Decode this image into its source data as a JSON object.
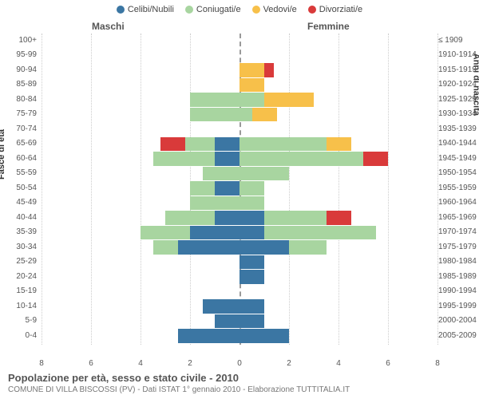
{
  "chart": {
    "type": "population-pyramid",
    "legend": [
      {
        "label": "Celibi/Nubili",
        "color": "#3b76a3"
      },
      {
        "label": "Coniugati/e",
        "color": "#a8d5a0"
      },
      {
        "label": "Vedovi/e",
        "color": "#f7c04a"
      },
      {
        "label": "Divorziati/e",
        "color": "#d93a3a"
      }
    ],
    "gender_left": "Maschi",
    "gender_right": "Femmine",
    "ylabel_left": "Fasce di età",
    "ylabel_right": "Anni di nascita",
    "x_max": 8,
    "x_ticks": [
      8,
      6,
      4,
      2,
      0,
      2,
      4,
      6,
      8
    ],
    "row_height": 17.5,
    "row_gap": 1,
    "plot_bg": "#ffffff",
    "grid_color": "#cccccc",
    "center_color": "#999999",
    "age_bands": [
      {
        "age": "100+",
        "birth": "≤ 1909",
        "m": [
          0,
          0,
          0,
          0
        ],
        "f": [
          0,
          0,
          0,
          0
        ]
      },
      {
        "age": "95-99",
        "birth": "1910-1914",
        "m": [
          0,
          0,
          0,
          0
        ],
        "f": [
          0,
          0,
          0,
          0
        ]
      },
      {
        "age": "90-94",
        "birth": "1915-1919",
        "m": [
          0,
          0,
          0,
          0
        ],
        "f": [
          0,
          0,
          1,
          0.4
        ]
      },
      {
        "age": "85-89",
        "birth": "1920-1924",
        "m": [
          0,
          0,
          0,
          0
        ],
        "f": [
          0,
          0,
          1,
          0
        ]
      },
      {
        "age": "80-84",
        "birth": "1925-1929",
        "m": [
          0,
          2,
          0,
          0
        ],
        "f": [
          0,
          1,
          2,
          0
        ]
      },
      {
        "age": "75-79",
        "birth": "1930-1934",
        "m": [
          0,
          2,
          0,
          0
        ],
        "f": [
          0,
          0.5,
          1,
          0
        ]
      },
      {
        "age": "70-74",
        "birth": "1935-1939",
        "m": [
          0,
          0,
          0,
          0
        ],
        "f": [
          0,
          0,
          0,
          0
        ]
      },
      {
        "age": "65-69",
        "birth": "1940-1944",
        "m": [
          1,
          1.2,
          0,
          1
        ],
        "f": [
          0,
          3.5,
          1,
          0
        ]
      },
      {
        "age": "60-64",
        "birth": "1945-1949",
        "m": [
          1,
          2.5,
          0,
          0
        ],
        "f": [
          0,
          5,
          0,
          1
        ]
      },
      {
        "age": "55-59",
        "birth": "1950-1954",
        "m": [
          0,
          1.5,
          0,
          0
        ],
        "f": [
          0,
          2,
          0,
          0
        ]
      },
      {
        "age": "50-54",
        "birth": "1955-1959",
        "m": [
          1,
          1,
          0,
          0
        ],
        "f": [
          0,
          1,
          0,
          0
        ]
      },
      {
        "age": "45-49",
        "birth": "1960-1964",
        "m": [
          0,
          2,
          0,
          0
        ],
        "f": [
          0,
          1,
          0,
          0
        ]
      },
      {
        "age": "40-44",
        "birth": "1965-1969",
        "m": [
          1,
          2,
          0,
          0
        ],
        "f": [
          1,
          2.5,
          0,
          1
        ]
      },
      {
        "age": "35-39",
        "birth": "1970-1974",
        "m": [
          2,
          2,
          0,
          0
        ],
        "f": [
          1,
          4.5,
          0,
          0
        ]
      },
      {
        "age": "30-34",
        "birth": "1975-1979",
        "m": [
          2.5,
          1,
          0,
          0
        ],
        "f": [
          2,
          1.5,
          0,
          0
        ]
      },
      {
        "age": "25-29",
        "birth": "1980-1984",
        "m": [
          0,
          0,
          0,
          0
        ],
        "f": [
          1,
          0,
          0,
          0
        ]
      },
      {
        "age": "20-24",
        "birth": "1985-1989",
        "m": [
          0,
          0,
          0,
          0
        ],
        "f": [
          1,
          0,
          0,
          0
        ]
      },
      {
        "age": "15-19",
        "birth": "1990-1994",
        "m": [
          0,
          0,
          0,
          0
        ],
        "f": [
          0,
          0,
          0,
          0
        ]
      },
      {
        "age": "10-14",
        "birth": "1995-1999",
        "m": [
          1.5,
          0,
          0,
          0
        ],
        "f": [
          1,
          0,
          0,
          0
        ]
      },
      {
        "age": "5-9",
        "birth": "2000-2004",
        "m": [
          1,
          0,
          0,
          0
        ],
        "f": [
          1,
          0,
          0,
          0
        ]
      },
      {
        "age": "0-4",
        "birth": "2005-2009",
        "m": [
          2.5,
          0,
          0,
          0
        ],
        "f": [
          2,
          0,
          0,
          0
        ]
      }
    ],
    "title": "Popolazione per età, sesso e stato civile - 2010",
    "subtitle": "COMUNE DI VILLA BISCOSSI (PV) - Dati ISTAT 1° gennaio 2010 - Elaborazione TUTTITALIA.IT",
    "label_fontsize": 10,
    "title_fontsize": 13
  }
}
